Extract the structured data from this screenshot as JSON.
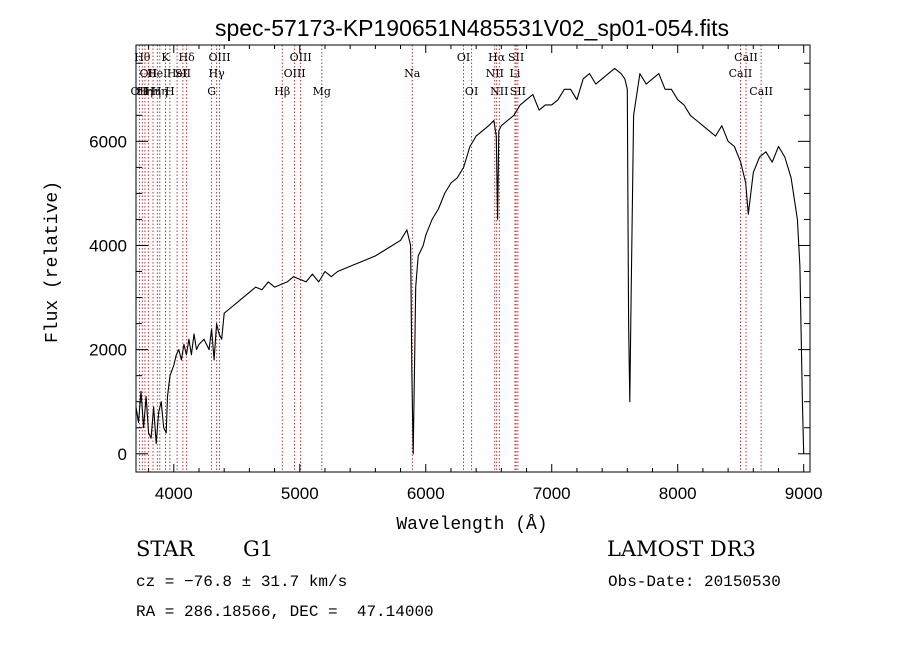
{
  "chart_data": {
    "type": "line",
    "title": "spec-57173-KP190651N485531V02_sp01-054.fits",
    "xlabel": "Wavelength (Å)",
    "ylabel": "Flux (relative)",
    "xlim": [
      3700,
      9050
    ],
    "ylim": [
      -350,
      7850
    ],
    "xticks": [
      4000,
      5000,
      6000,
      7000,
      8000,
      9000
    ],
    "yticks": [
      0,
      2000,
      4000,
      6000
    ],
    "grid": false,
    "series": [
      {
        "x": [
          3700,
          3720,
          3740,
          3760,
          3780,
          3800,
          3820,
          3840,
          3860,
          3880,
          3900,
          3920,
          3940,
          3950,
          3970,
          4000,
          4020,
          4040,
          4060,
          4080,
          4100,
          4120,
          4140,
          4160,
          4180,
          4200,
          4240,
          4280,
          4300,
          4320,
          4340,
          4360,
          4380,
          4400,
          4450,
          4500,
          4550,
          4600,
          4650,
          4700,
          4750,
          4800,
          4850,
          4900,
          4950,
          5000,
          5050,
          5100,
          5150,
          5200,
          5250,
          5300,
          5400,
          5500,
          5600,
          5700,
          5800,
          5850,
          5880,
          5890,
          5900,
          5910,
          5920,
          5940,
          5960,
          5980,
          6000,
          6050,
          6100,
          6150,
          6200,
          6250,
          6300,
          6350,
          6400,
          6450,
          6500,
          6540,
          6560,
          6570,
          6580,
          6600,
          6650,
          6700,
          6750,
          6800,
          6850,
          6900,
          6950,
          7000,
          7050,
          7100,
          7150,
          7200,
          7250,
          7300,
          7350,
          7400,
          7450,
          7500,
          7550,
          7580,
          7600,
          7610,
          7620,
          7630,
          7650,
          7700,
          7750,
          7800,
          7850,
          7900,
          7950,
          8000,
          8050,
          8100,
          8150,
          8200,
          8250,
          8300,
          8350,
          8400,
          8450,
          8500,
          8540,
          8560,
          8600,
          8650,
          8700,
          8750,
          8800,
          8850,
          8900,
          8950,
          8970,
          8990,
          9000
        ],
        "y": [
          900,
          600,
          1200,
          500,
          1100,
          400,
          300,
          900,
          200,
          800,
          1000,
          500,
          400,
          1100,
          1500,
          1700,
          1900,
          2000,
          1800,
          2100,
          1900,
          2200,
          1900,
          2300,
          2000,
          2100,
          2200,
          2000,
          2400,
          1800,
          2500,
          2300,
          2200,
          2700,
          2800,
          2900,
          3000,
          3100,
          3200,
          3150,
          3300,
          3200,
          3250,
          3300,
          3400,
          3350,
          3300,
          3450,
          3300,
          3500,
          3400,
          3500,
          3600,
          3700,
          3800,
          3950,
          4100,
          4300,
          4000,
          1500,
          0,
          1500,
          3200,
          3800,
          3900,
          4000,
          4200,
          4500,
          4700,
          5000,
          5200,
          5300,
          5500,
          5900,
          6100,
          6200,
          6300,
          6400,
          6100,
          4500,
          6200,
          6300,
          6400,
          6500,
          6700,
          6800,
          6900,
          6600,
          6700,
          6700,
          6800,
          7000,
          7000,
          6800,
          7200,
          7300,
          7100,
          7200,
          7300,
          7400,
          7300,
          7200,
          7000,
          2500,
          1000,
          3000,
          6500,
          7300,
          7100,
          7200,
          7300,
          7000,
          7000,
          6800,
          6700,
          6500,
          6400,
          6300,
          6200,
          6100,
          6300,
          6000,
          5900,
          5600,
          5200,
          4600,
          5400,
          5700,
          5800,
          5600,
          5900,
          5700,
          5300,
          4500,
          3600,
          1000,
          0
        ]
      }
    ],
    "lines": [
      {
        "x": 3727,
        "label": "OII",
        "row": 2
      },
      {
        "x": 3750,
        "label": "Hθ",
        "row": 0
      },
      {
        "x": 3771,
        "label": "Hη",
        "row": 2
      },
      {
        "x": 3798,
        "label": "OII",
        "row": 1
      },
      {
        "x": 3835,
        "label": "Hη",
        "row": 2
      },
      {
        "x": 3869,
        "label": "HeI",
        "row": 1
      },
      {
        "x": 3889,
        "label": "Hη",
        "row": 2
      },
      {
        "x": 3934,
        "label": "K",
        "row": 0
      },
      {
        "x": 3969,
        "label": "H",
        "row": 2
      },
      {
        "x": 4026,
        "label": "HeI",
        "row": 1
      },
      {
        "x": 4072,
        "label": "SII",
        "row": 1
      },
      {
        "x": 4102,
        "label": "Hδ",
        "row": 0
      },
      {
        "x": 4300,
        "label": "G",
        "row": 2
      },
      {
        "x": 4340,
        "label": "Hγ",
        "row": 1
      },
      {
        "x": 4363,
        "label": "OIII",
        "row": 0
      },
      {
        "x": 4861,
        "label": "Hβ",
        "row": 2
      },
      {
        "x": 4959,
        "label": "OIII",
        "row": 1
      },
      {
        "x": 5007,
        "label": "OIII",
        "row": 0
      },
      {
        "x": 5175,
        "label": "Mg",
        "row": 2
      },
      {
        "x": 5893,
        "label": "Na",
        "row": 1
      },
      {
        "x": 6300,
        "label": "OI",
        "row": 0
      },
      {
        "x": 6364,
        "label": "OI",
        "row": 2
      },
      {
        "x": 6548,
        "label": "NII",
        "row": 1
      },
      {
        "x": 6563,
        "label": "Hα",
        "row": 0
      },
      {
        "x": 6584,
        "label": "NII",
        "row": 2
      },
      {
        "x": 6708,
        "label": "Li",
        "row": 1
      },
      {
        "x": 6717,
        "label": "SII",
        "row": 0
      },
      {
        "x": 6731,
        "label": "SII",
        "row": 2
      },
      {
        "x": 8498,
        "label": "CaII",
        "row": 1
      },
      {
        "x": 8542,
        "label": "CaII",
        "row": 0
      },
      {
        "x": 8662,
        "label": "CaII",
        "row": 2
      }
    ]
  },
  "info": {
    "class_label": "STAR",
    "subclass": "G1",
    "survey": "LAMOST DR3",
    "cz": "cz = −76.8 ± 31.7 km/s",
    "obs_date": "Obs-Date: 20150530",
    "coords": "RA = 286.18566, DEC =  47.14000"
  },
  "colors": {
    "line": "#000000",
    "marker": "#b22222"
  }
}
